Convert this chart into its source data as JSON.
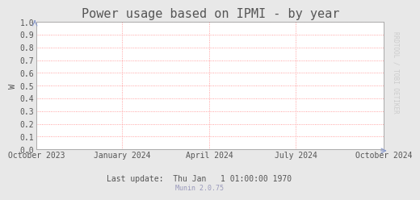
{
  "title": "Power usage based on IPMI - by year",
  "ylabel": "W",
  "bg_color": "#e8e8e8",
  "plot_bg_color": "#ffffff",
  "grid_color": "#ff8888",
  "axis_color": "#aaaaaa",
  "ylim": [
    0.0,
    1.0
  ],
  "yticks": [
    0.0,
    0.1,
    0.2,
    0.3,
    0.4,
    0.5,
    0.6,
    0.7,
    0.8,
    0.9,
    1.0
  ],
  "ytick_labels": [
    "0.0",
    "0.1",
    "0.2",
    "0.3",
    "0.4",
    "0.5",
    "0.6",
    "0.7",
    "0.8",
    "0.9",
    "1.0"
  ],
  "xtick_labels": [
    "October 2023",
    "January 2024",
    "April 2024",
    "July 2024",
    "October 2024"
  ],
  "xtick_positions": [
    0.0,
    0.247,
    0.497,
    0.747,
    1.0
  ],
  "footer_text": "Last update:  Thu Jan   1 01:00:00 1970",
  "munin_text": "Munin 2.0.75",
  "side_text": "RRDTOOL / TOBI OETIKER",
  "title_fontsize": 11,
  "label_fontsize": 7.5,
  "tick_fontsize": 7,
  "footer_fontsize": 7,
  "munin_fontsize": 6,
  "side_text_color": "#cccccc",
  "text_color": "#555555",
  "arrow_color": "#8899cc",
  "munin_color": "#9999bb"
}
